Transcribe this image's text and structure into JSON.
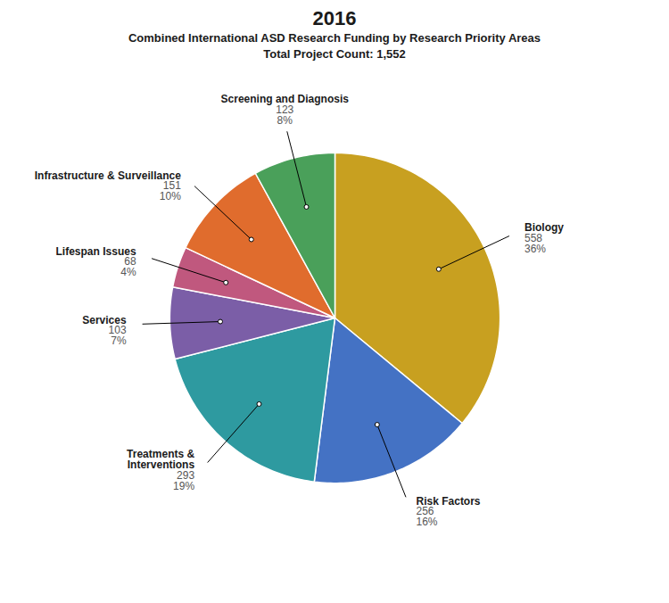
{
  "chart_data": {
    "type": "pie",
    "title": "2016",
    "subtitle": [
      "Combined International ASD Research Funding by Research Priority Areas",
      "Total Project Count: 1,552"
    ],
    "categories": [
      "Biology",
      "Risk Factors",
      "Treatments &\nInterventions",
      "Services",
      "Lifespan Issues",
      "Infrastructure & Surveillance",
      "Screening and Diagnosis"
    ],
    "values": [
      36,
      16,
      19,
      7,
      4,
      10,
      8
    ],
    "value_labels": [
      "36%",
      "16%",
      "19%",
      "7%",
      "4%",
      "10%",
      "8%"
    ],
    "counts": [
      558,
      256,
      293,
      103,
      68,
      151,
      123
    ],
    "colors": [
      "#c8a020",
      "#4472c4",
      "#2e9aa0",
      "#7b5ea7",
      "#c0587e",
      "#e06c2d",
      "#4aa05a"
    ],
    "data_labels": true
  }
}
